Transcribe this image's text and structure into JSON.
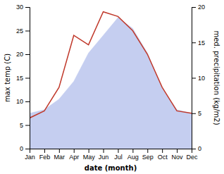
{
  "chart_data": {
    "type": "line",
    "categories": [
      "Jan",
      "Feb",
      "Mar",
      "Apr",
      "May",
      "Jun",
      "Jul",
      "Aug",
      "Sep",
      "Oct",
      "Nov",
      "Dec"
    ],
    "xlabel": "date (month)",
    "ylabel": "max temp (C)",
    "y2label": "med. precipitation (kg/m2)",
    "series": [
      {
        "type": "area",
        "axis": "y2",
        "color": "#c5cef0",
        "values": [
          5.0,
          5.5,
          7.0,
          9.5,
          13.5,
          16.0,
          18.5,
          17.0,
          13.5,
          8.5,
          5.5,
          5.0
        ]
      },
      {
        "type": "line",
        "color": "#c0392b",
        "values": [
          6.5,
          8.0,
          13.0,
          24.0,
          22.0,
          29.0,
          28.0,
          25.0,
          20.0,
          13.0,
          8.0,
          7.5
        ]
      }
    ],
    "ylim": [
      0,
      30
    ],
    "yticks": [
      0,
      5,
      10,
      15,
      20,
      25,
      30
    ],
    "y2lim": [
      0,
      20
    ],
    "y2ticks": [
      0,
      5,
      10,
      15,
      20
    ],
    "grid": false
  }
}
